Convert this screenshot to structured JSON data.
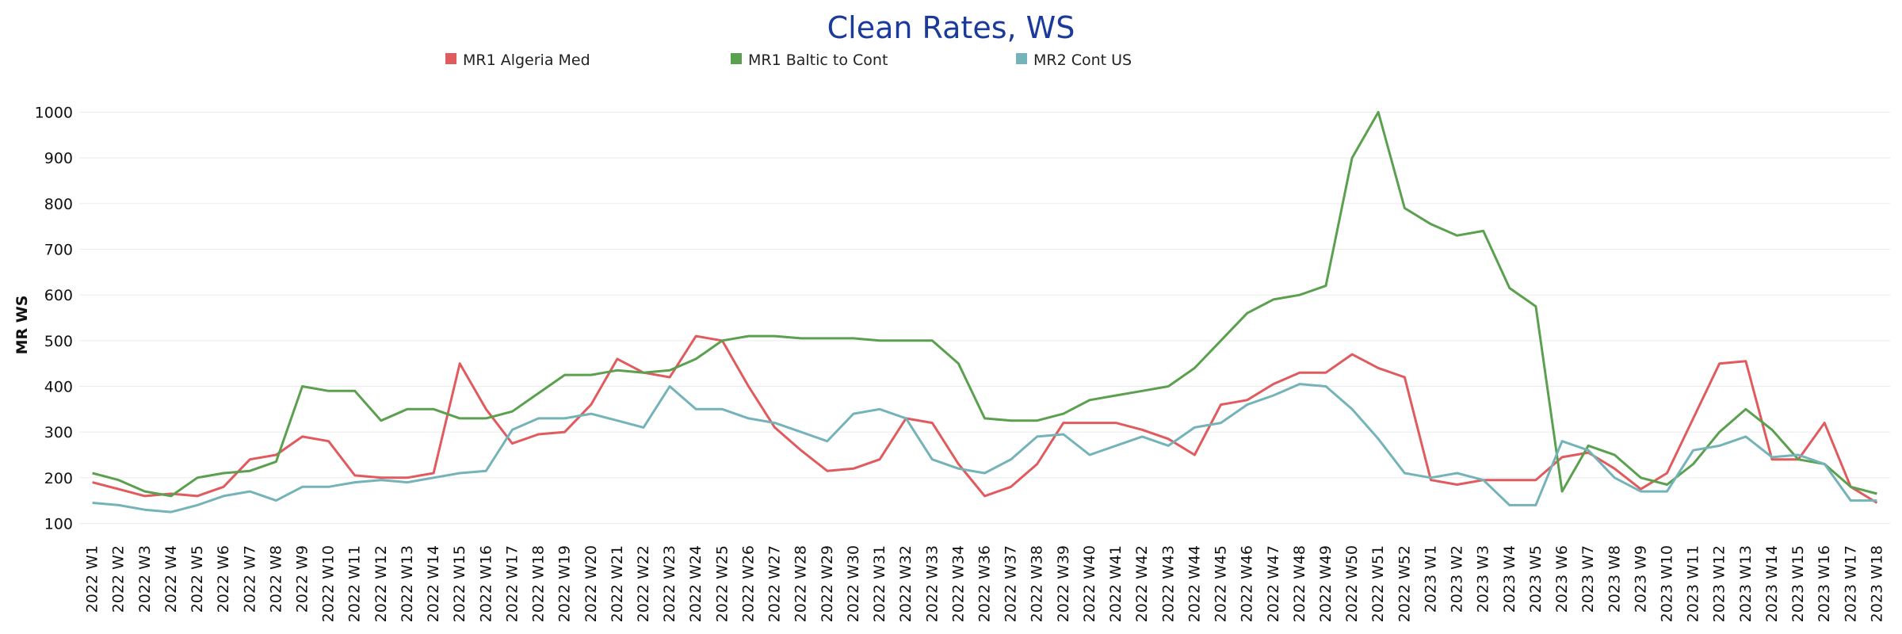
{
  "chart_data": {
    "type": "line",
    "title": "Clean Rates, WS",
    "ylabel": "MR WS",
    "ylim": [
      80,
      1020
    ],
    "yticks": [
      100,
      200,
      300,
      400,
      500,
      600,
      700,
      800,
      900,
      1000
    ],
    "grid": true,
    "legend_position": "top",
    "categories": [
      "2022 W1",
      "2022 W2",
      "2022 W3",
      "2022 W4",
      "2022 W5",
      "2022 W6",
      "2022 W7",
      "2022 W8",
      "2022 W9",
      "2022 W10",
      "2022 W11",
      "2022 W12",
      "2022 W13",
      "2022 W14",
      "2022 W15",
      "2022 W16",
      "2022 W17",
      "2022 W18",
      "2022 W19",
      "2022 W20",
      "2022 W21",
      "2022 W22",
      "2022 W23",
      "2022 W24",
      "2022 W25",
      "2022 W26",
      "2022 W27",
      "2022 W28",
      "2022 W29",
      "2022 W30",
      "2022 W31",
      "2022 W32",
      "2022 W33",
      "2022 W34",
      "2022 W36",
      "2022 W37",
      "2022 W38",
      "2022 W39",
      "2022 W40",
      "2022 W41",
      "2022 W42",
      "2022 W43",
      "2022 W44",
      "2022 W45",
      "2022 W46",
      "2022 W47",
      "2022 W48",
      "2022 W49",
      "2022 W50",
      "2022 W51",
      "2022 W52",
      "2023 W1",
      "2023 W2",
      "2023 W3",
      "2023 W4",
      "2023 W5",
      "2023 W6",
      "2023 W7",
      "2023 W8",
      "2023 W9",
      "2023 W10",
      "2023 W11",
      "2023 W12",
      "2023 W13",
      "2023 W14",
      "2023 W15",
      "2023 W16",
      "2023 W17",
      "2023 W18"
    ],
    "series": [
      {
        "name": "MR1 Algeria Med",
        "color": "#e05a5e",
        "values": [
          190,
          175,
          160,
          165,
          160,
          180,
          240,
          250,
          290,
          280,
          205,
          200,
          200,
          210,
          450,
          350,
          275,
          295,
          300,
          360,
          460,
          430,
          420,
          510,
          500,
          400,
          310,
          260,
          215,
          220,
          240,
          330,
          320,
          230,
          160,
          180,
          230,
          320,
          320,
          320,
          305,
          285,
          250,
          360,
          370,
          405,
          430,
          430,
          470,
          440,
          420,
          195,
          185,
          195,
          195,
          195,
          245,
          255,
          220,
          175,
          210,
          330,
          450,
          455,
          240,
          240,
          320,
          180,
          145
        ]
      },
      {
        "name": "MR1 Baltic to Cont",
        "color": "#5aa04e",
        "values": [
          210,
          195,
          170,
          160,
          200,
          210,
          215,
          235,
          400,
          390,
          390,
          325,
          350,
          350,
          330,
          330,
          345,
          385,
          425,
          425,
          435,
          430,
          435,
          460,
          500,
          510,
          510,
          505,
          505,
          505,
          500,
          500,
          500,
          450,
          330,
          325,
          325,
          340,
          370,
          380,
          390,
          400,
          440,
          500,
          560,
          590,
          600,
          620,
          900,
          1000,
          790,
          755,
          730,
          740,
          615,
          575,
          170,
          270,
          250,
          200,
          185,
          230,
          300,
          350,
          305,
          240,
          230,
          180,
          165
        ]
      },
      {
        "name": "MR2 Cont US",
        "color": "#74b3b8",
        "values": [
          145,
          140,
          130,
          125,
          140,
          160,
          170,
          150,
          180,
          180,
          190,
          195,
          190,
          200,
          210,
          215,
          305,
          330,
          330,
          340,
          325,
          310,
          400,
          350,
          350,
          330,
          320,
          300,
          280,
          340,
          350,
          330,
          240,
          220,
          210,
          240,
          290,
          295,
          250,
          270,
          290,
          270,
          310,
          320,
          360,
          380,
          405,
          400,
          350,
          285,
          210,
          200,
          210,
          195,
          140,
          140,
          280,
          260,
          200,
          170,
          170,
          260,
          270,
          290,
          245,
          250,
          230,
          150,
          150
        ]
      }
    ]
  }
}
